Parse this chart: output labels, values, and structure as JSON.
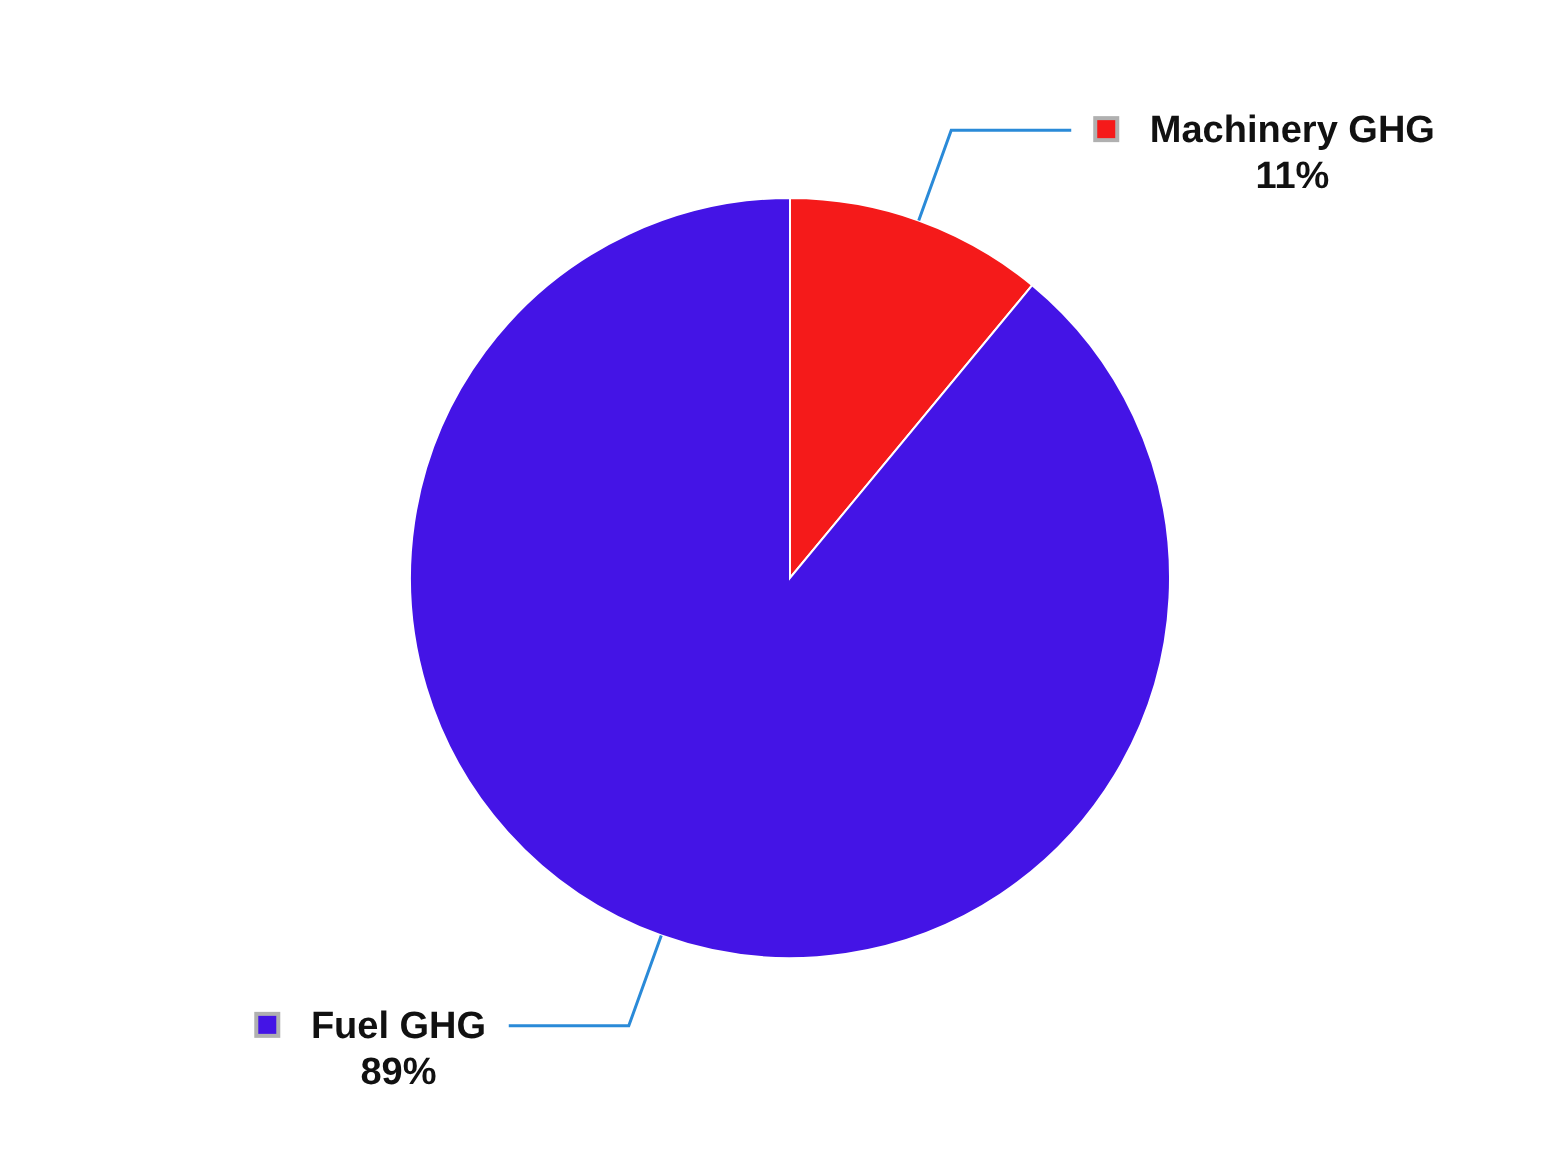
{
  "chart_data": {
    "type": "pie",
    "categories": [
      "Machinery GHG",
      "Fuel GHG"
    ],
    "values": [
      11,
      89
    ],
    "colors": [
      "#f51a1a",
      "#4414e6"
    ],
    "value_labels": [
      "11%",
      "89%"
    ],
    "legend": "top right"
  }
}
